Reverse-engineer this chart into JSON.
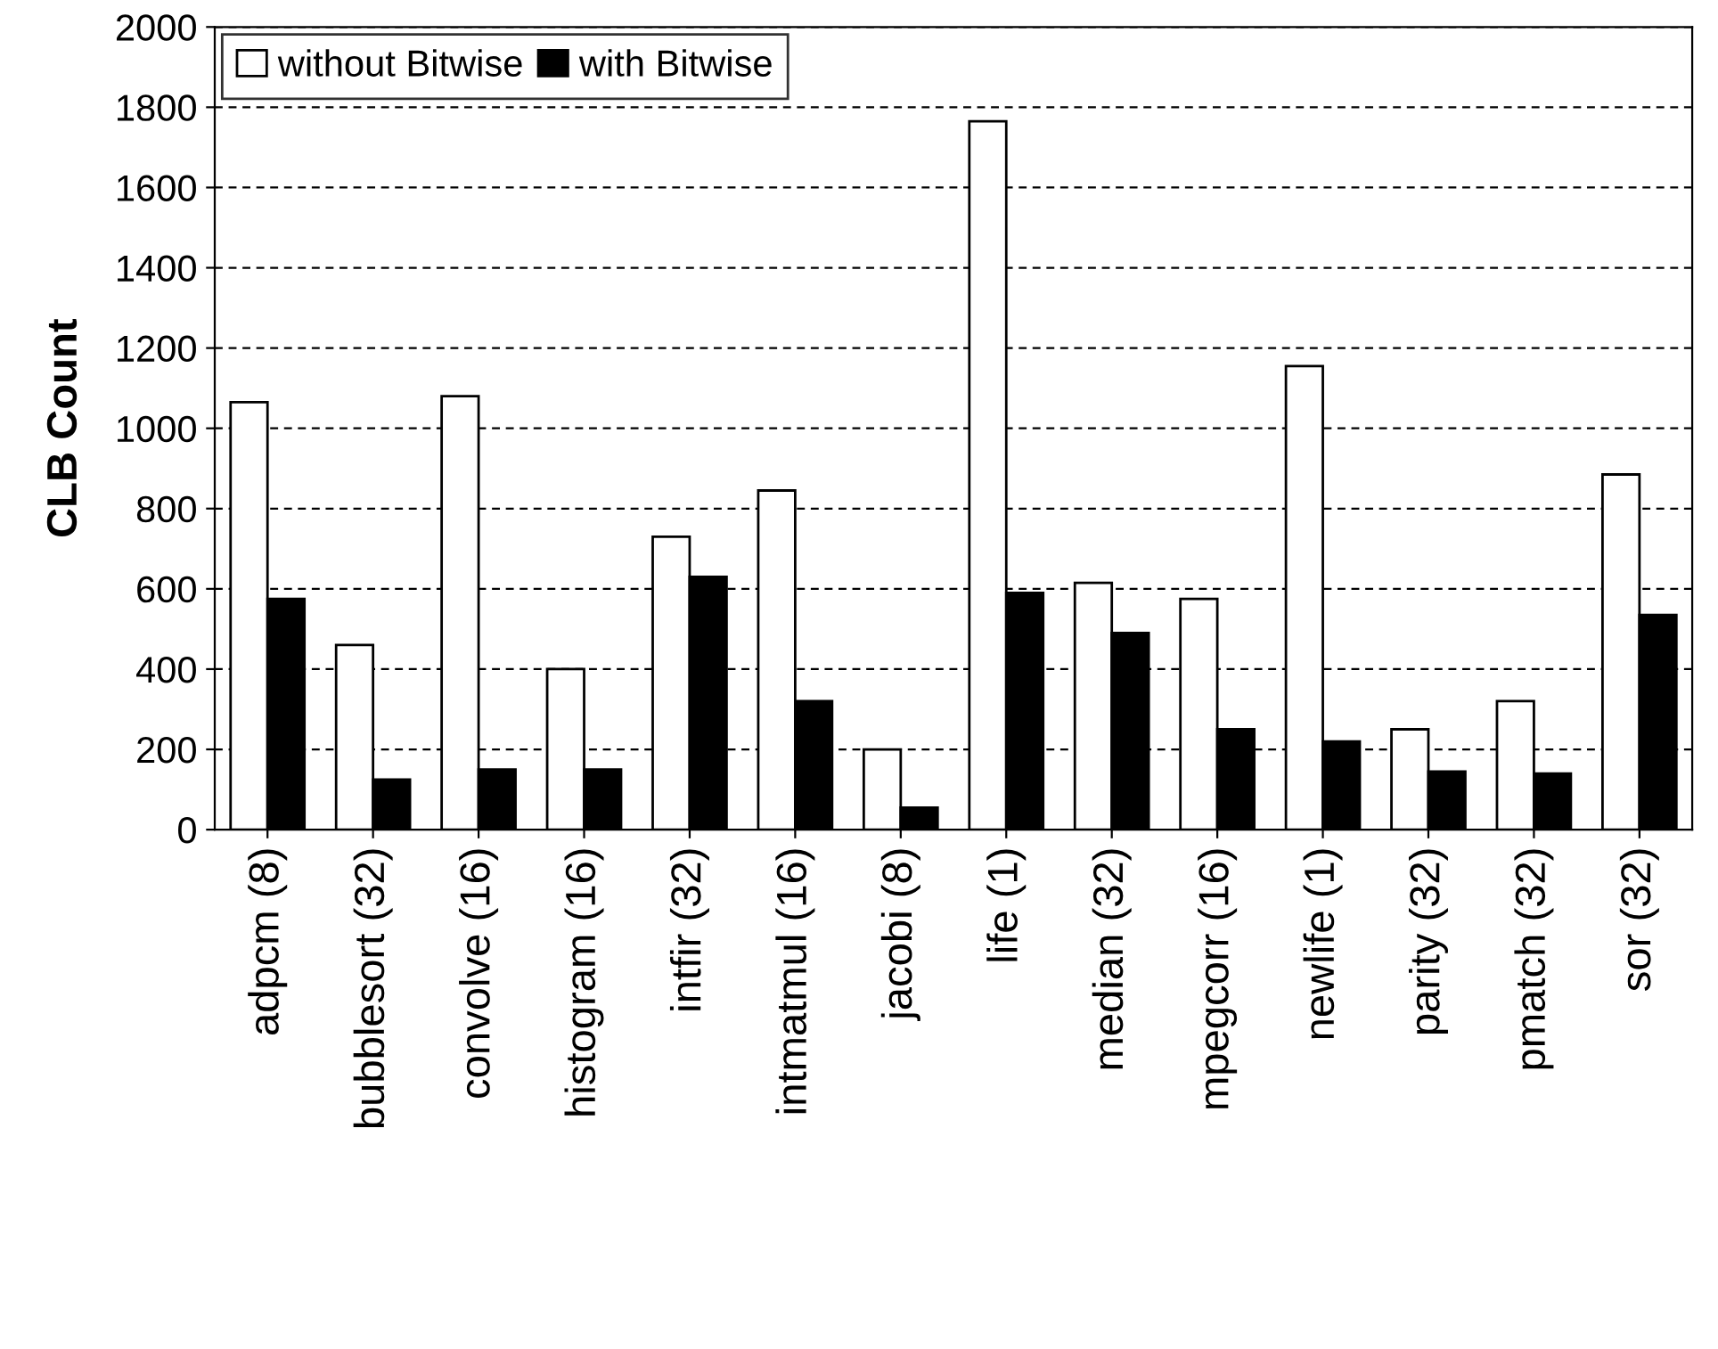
{
  "chart_data": {
    "type": "bar",
    "ylabel": "CLB Count",
    "categories": [
      "adpcm (8)",
      "bubblesort (32)",
      "convolve (16)",
      "histogram (16)",
      "intfir (32)",
      "intmatmul (16)",
      "jacobi (8)",
      "life (1)",
      "median (32)",
      "mpegcorr (16)",
      "newlife (1)",
      "parity (32)",
      "pmatch (32)",
      "sor (32)"
    ],
    "series": [
      {
        "name": "without Bitwise",
        "color": "#ffffff",
        "values": [
          1065,
          460,
          1080,
          400,
          730,
          845,
          200,
          1765,
          615,
          575,
          1155,
          250,
          320,
          885
        ]
      },
      {
        "name": "with Bitwise",
        "color": "#000000",
        "values": [
          575,
          125,
          150,
          150,
          630,
          320,
          55,
          590,
          490,
          250,
          220,
          145,
          140,
          535
        ]
      }
    ],
    "ylim": [
      0,
      2000
    ],
    "yticks": [
      0,
      200,
      400,
      600,
      800,
      1000,
      1200,
      1400,
      1600,
      1800,
      2000
    ],
    "grid": "y",
    "legend": "top left"
  }
}
